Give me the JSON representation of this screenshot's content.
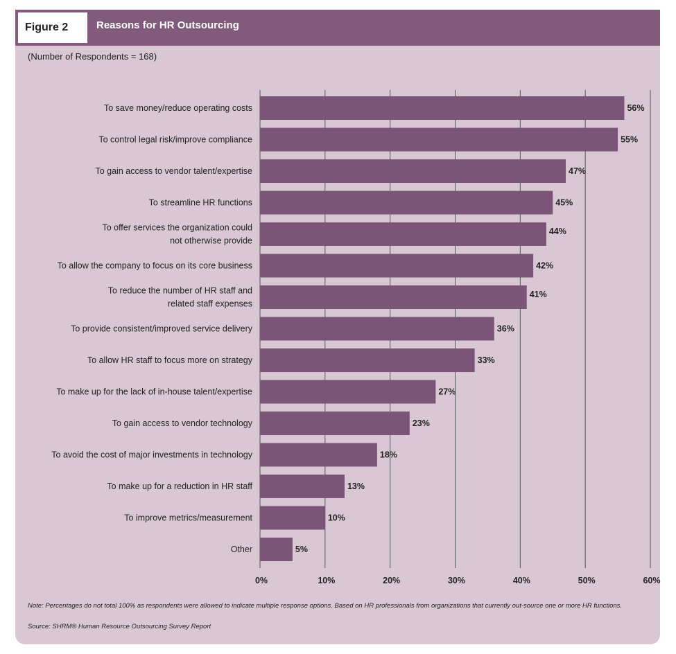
{
  "figure": {
    "label": "Figure 2",
    "title": "Reasons for HR Outsourcing",
    "respondents": "(Number of Respondents = 168)",
    "note": "Note: Percentages do not total 100% as respondents were allowed to indicate multiple response options. Based on HR professionals from organizations that currently out-source one or more HR functions.",
    "source": "Source: SHRM® Human Resource Outsourcing Survey Report"
  },
  "colors": {
    "bar": "#7b5577",
    "header": "#815a7c",
    "panel": "#d9c7d3",
    "gridline": "#555555"
  },
  "chart_data": {
    "type": "bar",
    "orientation": "horizontal",
    "title": "Reasons for HR Outsourcing",
    "categories": [
      [
        "To save money/reduce operating costs"
      ],
      [
        "To control legal risk/improve compliance"
      ],
      [
        "To gain access to vendor talent/expertise"
      ],
      [
        "To streamline HR functions"
      ],
      [
        "To offer services the organization could",
        "not otherwise provide"
      ],
      [
        "To allow the company to focus on its core business"
      ],
      [
        "To reduce the number of HR staff and",
        "related staff expenses"
      ],
      [
        "To provide consistent/improved service delivery"
      ],
      [
        "To allow HR staff to focus more on strategy"
      ],
      [
        "To make up for the lack of in-house talent/expertise"
      ],
      [
        "To gain access to vendor technology"
      ],
      [
        "To avoid the cost of major investments in technology"
      ],
      [
        "To make up for a reduction in HR staff"
      ],
      [
        "To improve metrics/measurement"
      ],
      [
        "Other"
      ]
    ],
    "values": [
      56,
      55,
      47,
      45,
      44,
      42,
      41,
      36,
      33,
      27,
      23,
      18,
      13,
      10,
      5
    ],
    "value_labels": [
      "56%",
      "55%",
      "47%",
      "45%",
      "44%",
      "42%",
      "41%",
      "36%",
      "33%",
      "27%",
      "23%",
      "18%",
      "13%",
      "10%",
      "5%"
    ],
    "xlim": [
      0,
      60
    ],
    "xticks": [
      0,
      10,
      20,
      30,
      40,
      50,
      60
    ],
    "xtick_labels": [
      "0%",
      "10%",
      "20%",
      "30%",
      "40%",
      "50%",
      "60%"
    ],
    "grid": true
  }
}
